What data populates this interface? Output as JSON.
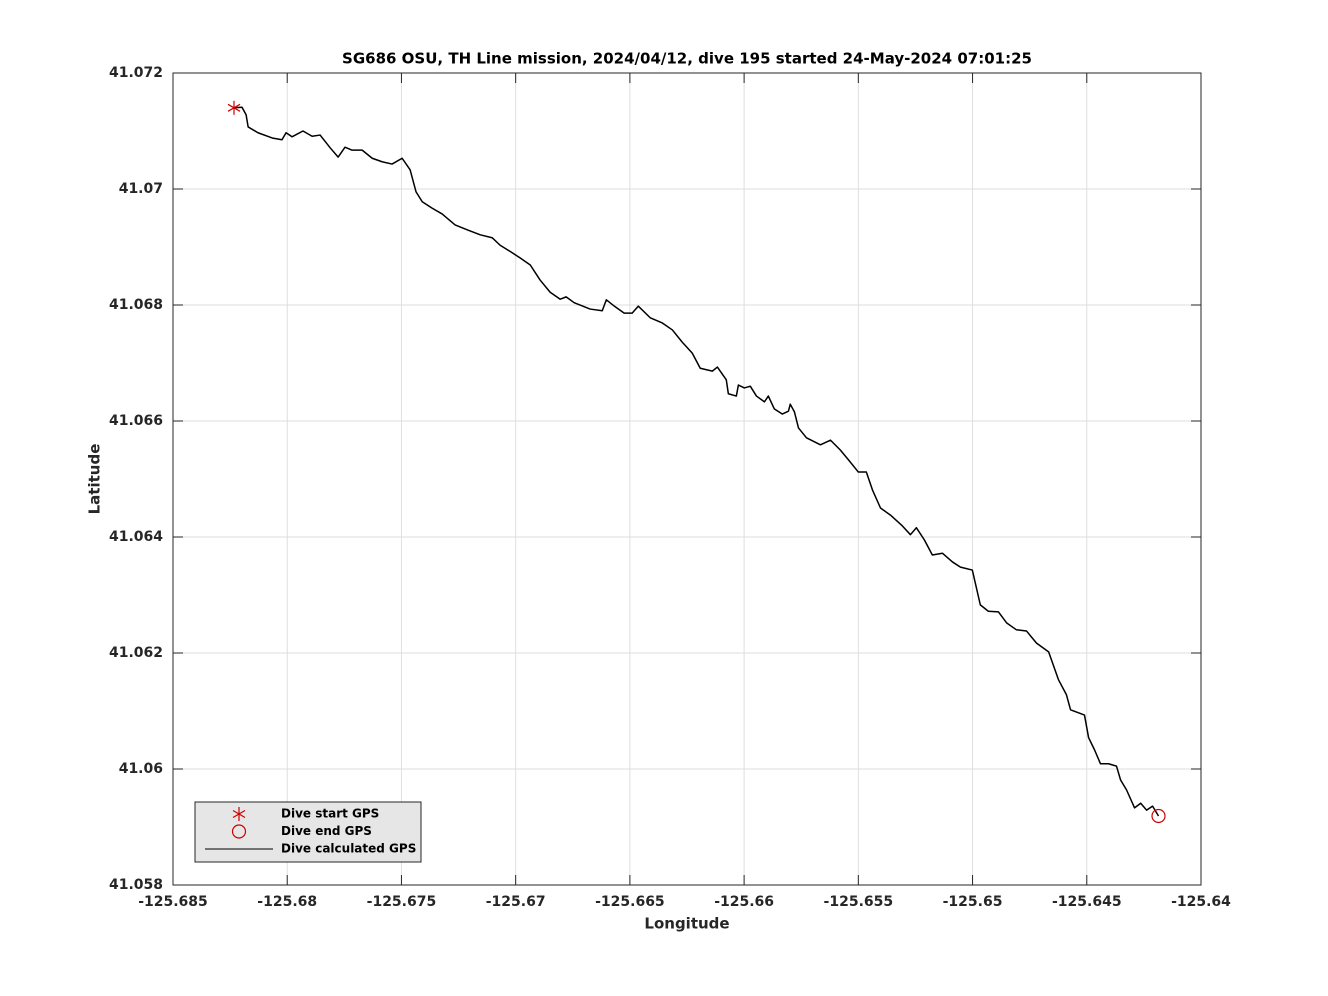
{
  "chart_data": {
    "type": "line",
    "title": "SG686 OSU, TH Line mission, 2024/04/12, dive 195 started 24-May-2024 07:01:25",
    "x_label": "Longitude",
    "y_label": "Latitude",
    "xlim": [
      -125.685,
      -125.64
    ],
    "ylim": [
      41.058,
      41.072
    ],
    "xticks": [
      -125.685,
      -125.68,
      -125.675,
      -125.67,
      -125.665,
      -125.66,
      -125.655,
      -125.65,
      -125.645,
      -125.64
    ],
    "yticks": [
      41.058,
      41.06,
      41.062,
      41.064,
      41.066,
      41.068,
      41.07,
      41.072
    ],
    "grid": true,
    "legend": "lower left",
    "series": [
      {
        "name": "Dive start GPS",
        "color": "#cc0000",
        "marker": "asterisk",
        "x": [
          -125.68233
        ],
        "values": [
          41.0714
        ]
      },
      {
        "name": "Dive end GPS",
        "color": "#cc0000",
        "marker": "circle",
        "x": [
          -125.64186
        ],
        "values": [
          41.05919
        ]
      },
      {
        "name": "Dive calculated GPS",
        "color": "#000000",
        "marker": "line",
        "x": [
          -125.68233,
          -125.68198,
          -125.6818,
          -125.68171,
          -125.68128,
          -125.68066,
          -125.68023,
          -125.68005,
          -125.67979,
          -125.67931,
          -125.67891,
          -125.67856,
          -125.67812,
          -125.67777,
          -125.67747,
          -125.67716,
          -125.67672,
          -125.67628,
          -125.67585,
          -125.67541,
          -125.67497,
          -125.67462,
          -125.67436,
          -125.67409,
          -125.67366,
          -125.67322,
          -125.67265,
          -125.67208,
          -125.67155,
          -125.67103,
          -125.67068,
          -125.67015,
          -125.6698,
          -125.66936,
          -125.66893,
          -125.66849,
          -125.66805,
          -125.66779,
          -125.66744,
          -125.66674,
          -125.66621,
          -125.66603,
          -125.66568,
          -125.66525,
          -125.6649,
          -125.66463,
          -125.66411,
          -125.66358,
          -125.66314,
          -125.66271,
          -125.66227,
          -125.66192,
          -125.66139,
          -125.66117,
          -125.66078,
          -125.66069,
          -125.66034,
          -125.66025,
          -125.65999,
          -125.65973,
          -125.65946,
          -125.65911,
          -125.65894,
          -125.65868,
          -125.65833,
          -125.65806,
          -125.65798,
          -125.6578,
          -125.65762,
          -125.65727,
          -125.65666,
          -125.65622,
          -125.65579,
          -125.65543,
          -125.655,
          -125.65465,
          -125.65438,
          -125.65403,
          -125.6536,
          -125.65307,
          -125.65272,
          -125.65246,
          -125.65211,
          -125.65176,
          -125.65132,
          -125.65088,
          -125.65053,
          -125.65001,
          -125.64966,
          -125.64931,
          -125.64887,
          -125.64851,
          -125.64808,
          -125.64764,
          -125.6472,
          -125.64667,
          -125.64624,
          -125.64589,
          -125.64571,
          -125.6451,
          -125.64492,
          -125.64466,
          -125.6444,
          -125.64405,
          -125.6437,
          -125.64352,
          -125.64326,
          -125.64291,
          -125.64264,
          -125.64238,
          -125.64212,
          -125.64186
        ],
        "values": [
          41.0714,
          41.07141,
          41.07128,
          41.07107,
          41.07097,
          41.07088,
          41.07085,
          41.07097,
          41.0709,
          41.071,
          41.07091,
          41.07093,
          41.07071,
          41.07055,
          41.07072,
          41.07067,
          41.07067,
          41.07053,
          41.07047,
          41.07043,
          41.07053,
          41.07033,
          41.06995,
          41.06978,
          41.06967,
          41.06957,
          41.06938,
          41.06929,
          41.06921,
          41.06916,
          41.06903,
          41.0689,
          41.06881,
          41.06869,
          41.06843,
          41.06822,
          41.0681,
          41.06814,
          41.06804,
          41.06793,
          41.0679,
          41.06809,
          41.06798,
          41.06786,
          41.06786,
          41.06798,
          41.06778,
          41.06769,
          41.06757,
          41.06736,
          41.06717,
          41.06691,
          41.06686,
          41.06693,
          41.06671,
          41.06647,
          41.06643,
          41.06662,
          41.06657,
          41.0666,
          41.06643,
          41.06633,
          41.06643,
          41.06621,
          41.06612,
          41.06617,
          41.06629,
          41.06616,
          41.06588,
          41.06571,
          41.06559,
          41.06567,
          41.0655,
          41.06533,
          41.06512,
          41.06512,
          41.06481,
          41.0645,
          41.06438,
          41.06419,
          41.06404,
          41.06416,
          41.06395,
          41.06369,
          41.06372,
          41.06357,
          41.06348,
          41.06343,
          41.06283,
          41.06272,
          41.06271,
          41.06252,
          41.0624,
          41.06238,
          41.06217,
          41.06202,
          41.06154,
          41.06128,
          41.06102,
          41.06093,
          41.06054,
          41.06033,
          41.06009,
          41.06009,
          41.06005,
          41.05981,
          41.05964,
          41.05933,
          41.05941,
          41.05929,
          41.05936,
          41.05919
        ]
      }
    ]
  }
}
